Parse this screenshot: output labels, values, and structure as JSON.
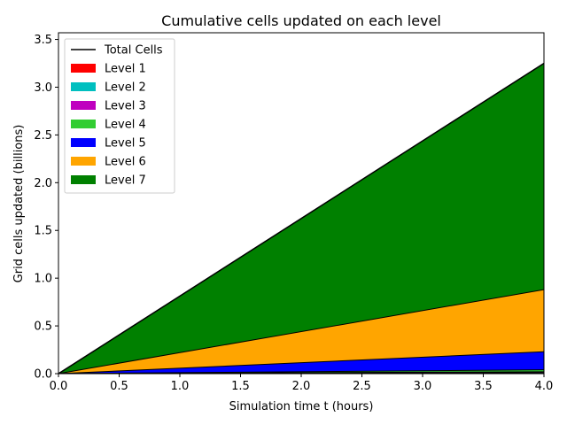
{
  "chart_data": {
    "type": "area",
    "title": "Cumulative cells updated on each level",
    "xlabel": "Simulation time t (hours)",
    "ylabel": "Grid cells updated (billions)",
    "xlim": [
      0,
      4.0
    ],
    "ylim": [
      0,
      3.57
    ],
    "x_ticks": [
      "0.0",
      "0.5",
      "1.0",
      "1.5",
      "2.0",
      "2.5",
      "3.0",
      "3.5",
      "4.0"
    ],
    "y_ticks": [
      "0.0",
      "0.5",
      "1.0",
      "1.5",
      "2.0",
      "2.5",
      "3.0",
      "3.5"
    ],
    "grid": false,
    "legend_position": "top-left",
    "x": [
      0,
      4.0
    ],
    "series": [
      {
        "name": "Level 1",
        "color": "#ff0000",
        "values": [
          0,
          0.004
        ]
      },
      {
        "name": "Level 2",
        "color": "#00bfbf",
        "values": [
          0,
          0.006
        ]
      },
      {
        "name": "Level 3",
        "color": "#bf00bf",
        "values": [
          0,
          0.01
        ]
      },
      {
        "name": "Level 4",
        "color": "#32cd32",
        "values": [
          0,
          0.02
        ]
      },
      {
        "name": "Level 5",
        "color": "#0000ff",
        "values": [
          0,
          0.19
        ]
      },
      {
        "name": "Level 6",
        "color": "#ffa500",
        "values": [
          0,
          0.65
        ]
      },
      {
        "name": "Level 7",
        "color": "#008000",
        "values": [
          0,
          2.37
        ]
      }
    ],
    "total": {
      "name": "Total Cells",
      "color": "#000000",
      "values": [
        0,
        3.25
      ]
    }
  }
}
